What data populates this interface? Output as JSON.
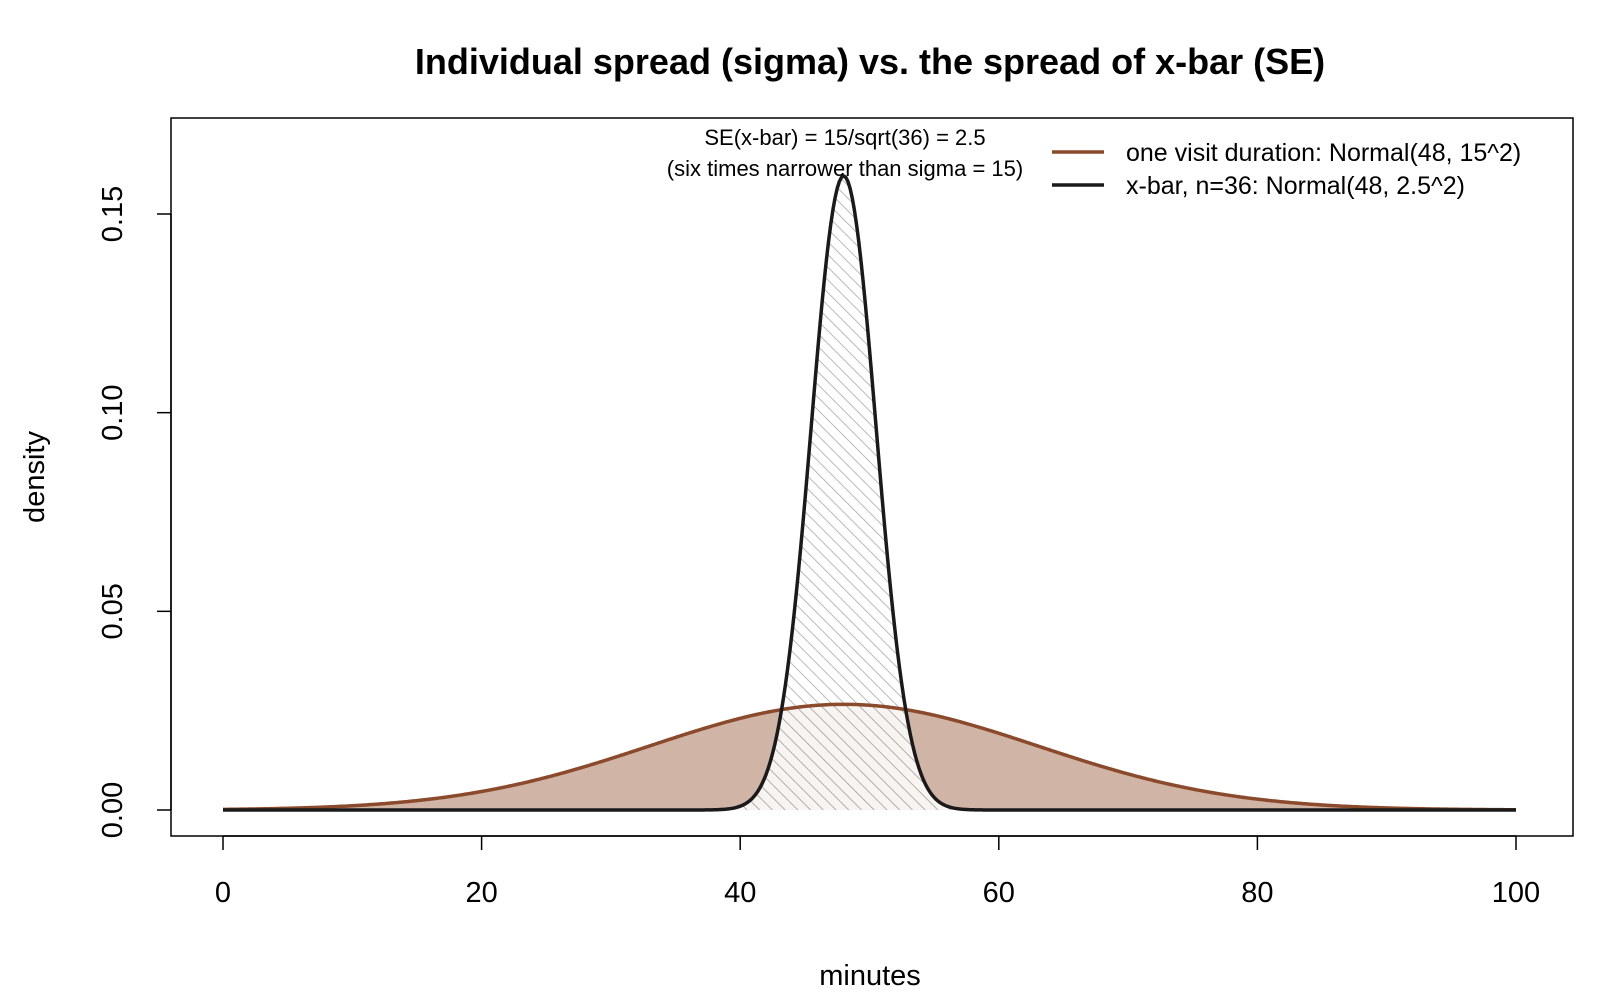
{
  "chart_data": {
    "type": "area",
    "title": "Individual spread (sigma) vs. the spread of x-bar (SE)",
    "xlabel": "minutes",
    "ylabel": "density",
    "xlim": [
      0,
      100
    ],
    "ylim": [
      0,
      0.17
    ],
    "x_ticks": [
      0,
      20,
      40,
      60,
      80,
      100
    ],
    "x_tick_labels": [
      "0",
      "20",
      "40",
      "60",
      "80",
      "100"
    ],
    "y_ticks": [
      0,
      0.05,
      0.1,
      0.15
    ],
    "y_tick_labels": [
      "0.00",
      "0.05",
      "0.10",
      "0.15"
    ],
    "grid": false,
    "legend_position": "top-right",
    "series": [
      {
        "name": "one visit duration: Normal(48, 15^2)",
        "distribution": "normal",
        "mean": 48,
        "sd": 15,
        "color": "#8B4A2B",
        "fill": "#D0B4A6",
        "fill_style": "solid"
      },
      {
        "name": "x-bar, n=36: Normal(48, 2.5^2)",
        "distribution": "normal",
        "mean": 48,
        "sd": 2.5,
        "color": "#1a1a1a",
        "fill_style": "hatched"
      }
    ],
    "annotations": [
      "SE(x-bar) = 15/sqrt(36) = 2.5",
      "(six times narrower than sigma = 15)"
    ]
  }
}
